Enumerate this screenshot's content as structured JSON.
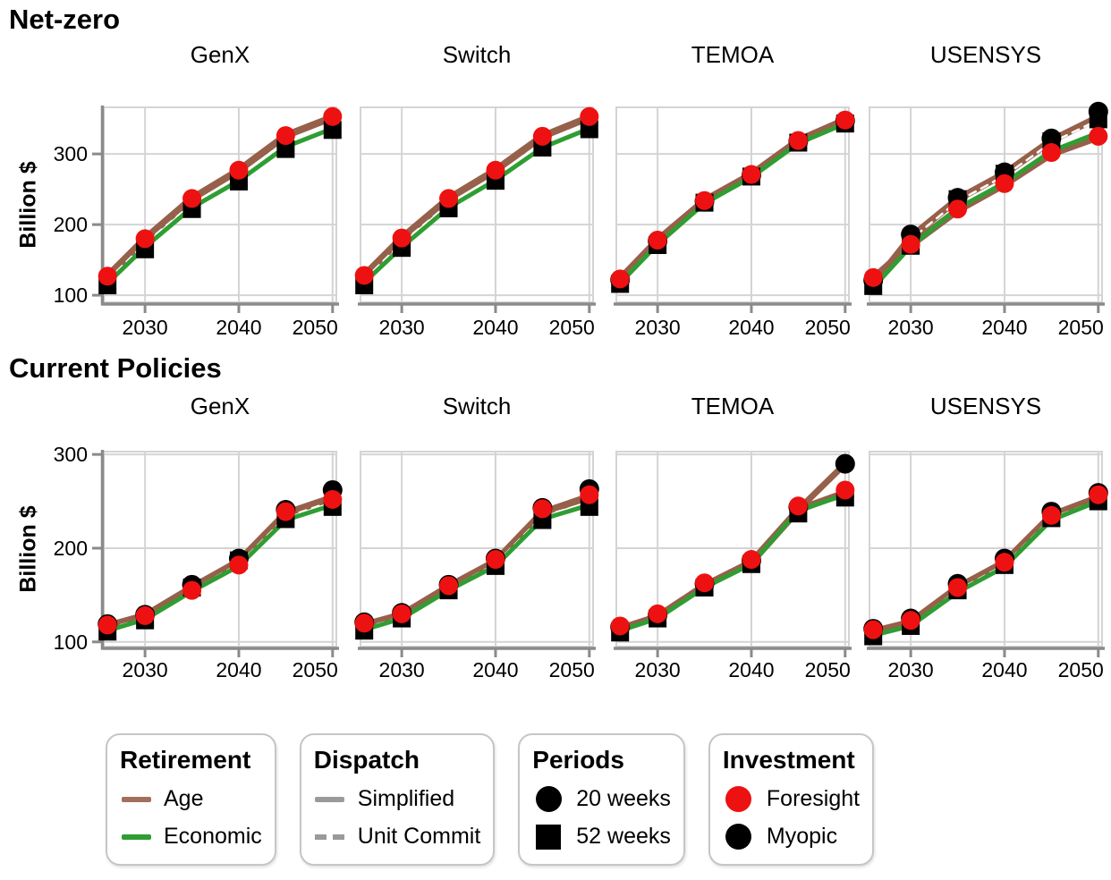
{
  "colors": {
    "age_brown": "#96604a",
    "economic_green": "#2f9e32",
    "foresight_red": "#ee1111",
    "myopic_black": "#000000",
    "dispatch_gray": "#9a9a9a",
    "grid": "#d4d4d4",
    "axis": "#8a8a8a",
    "background": "#ffffff"
  },
  "chart_data": {
    "type": "line",
    "x": [
      2026,
      2030,
      2035,
      2040,
      2045,
      2050
    ],
    "x_ticks": [
      2030,
      2040,
      2050
    ],
    "x_domain": [
      2025.6,
      2050.4
    ],
    "rows": [
      {
        "title": "Net-zero",
        "ylabel": "Billion $",
        "y_ticks": [
          100,
          200,
          300
        ],
        "y_domain": [
          90,
          366
        ],
        "panels": [
          {
            "title": "GenX",
            "lines": [
              {
                "name": "age-simplified",
                "color": "#96604a",
                "width": 8,
                "dash": null,
                "values": [
                  127,
                  180,
                  237,
                  277,
                  326,
                  352
                ]
              },
              {
                "name": "unit-commit",
                "color": "#ffffff",
                "width": 2.5,
                "dash": "8 7",
                "values": [
                  121,
                  173,
                  229,
                  268,
                  317,
                  342
                ]
              },
              {
                "name": "economic",
                "color": "#2f9e32",
                "width": 5,
                "dash": null,
                "values": [
                  117,
                  168,
                  224,
                  262,
                  310,
                  336
                ]
              }
            ],
            "markers": [
              {
                "name": "52-weeks-myopic",
                "shape": "square",
                "color": "#000000",
                "values": [
                  114,
                  165,
                  222,
                  261,
                  307,
                  334
                ]
              },
              {
                "name": "20-weeks-foresight",
                "shape": "circle",
                "color": "#ee1111",
                "values": [
                  127,
                  180,
                  237,
                  277,
                  326,
                  353
                ]
              }
            ]
          },
          {
            "title": "Switch",
            "lines": [
              {
                "name": "age-simplified",
                "color": "#96604a",
                "width": 8,
                "dash": null,
                "values": [
                  128,
                  181,
                  237,
                  277,
                  325,
                  352
                ]
              },
              {
                "name": "unit-commit",
                "color": "#ffffff",
                "width": 2.5,
                "dash": "8 7",
                "values": [
                  122,
                  174,
                  229,
                  268,
                  315,
                  342
                ]
              },
              {
                "name": "economic",
                "color": "#2f9e32",
                "width": 5,
                "dash": null,
                "values": [
                  118,
                  168,
                  224,
                  263,
                  309,
                  336
                ]
              }
            ],
            "markers": [
              {
                "name": "52-weeks-myopic",
                "shape": "square",
                "color": "#000000",
                "values": [
                  114,
                  167,
                  223,
                  262,
                  309,
                  335
                ]
              },
              {
                "name": "20-weeks-foresight",
                "shape": "circle",
                "color": "#ee1111",
                "values": [
                  128,
                  181,
                  237,
                  277,
                  325,
                  353
                ]
              }
            ]
          },
          {
            "title": "TEMOA",
            "lines": [
              {
                "name": "age-simplified",
                "color": "#96604a",
                "width": 8,
                "dash": null,
                "values": [
                  123,
                  178,
                  234,
                  271,
                  319,
                  348
                ]
              },
              {
                "name": "unit-commit",
                "color": "#ffffff",
                "width": 2.5,
                "dash": "8 7",
                "values": [
                  119,
                  174,
                  231,
                  268,
                  316,
                  344
                ]
              },
              {
                "name": "economic",
                "color": "#2f9e32",
                "width": 5,
                "dash": null,
                "values": [
                  117,
                  172,
                  230,
                  267,
                  315,
                  343
                ]
              }
            ],
            "markers": [
              {
                "name": "52-weeks-myopic",
                "shape": "square",
                "color": "#000000",
                "values": [
                  116,
                  171,
                  231,
                  268,
                  316,
                  343
                ]
              },
              {
                "name": "20-weeks-myopic",
                "shape": "circle",
                "color": "#000000",
                "values": [
                  122,
                  177,
                  233,
                  270,
                  318,
                  347
                ]
              },
              {
                "name": "20-weeks-foresight",
                "shape": "circle",
                "color": "#ee1111",
                "values": [
                  123,
                  178,
                  234,
                  271,
                  319,
                  348
                ]
              }
            ]
          },
          {
            "title": "USENSYS",
            "lines": [
              {
                "name": "age-myopic",
                "color": "#96604a",
                "width": 8,
                "dash": null,
                "values": [
                  115,
                  182,
                  236,
                  272,
                  319,
                  352
                ]
              },
              {
                "name": "unit-commit",
                "color": "#ffffff",
                "width": 2.5,
                "dash": "8 7",
                "values": [
                  112,
                  179,
                  233,
                  269,
                  316,
                  348
                ]
              },
              {
                "name": "age-foresight",
                "color": "#96604a",
                "width": 8,
                "dash": null,
                "values": [
                  124,
                  171,
                  220,
                  257,
                  300,
                  324
                ]
              },
              {
                "name": "economic",
                "color": "#2f9e32",
                "width": 5,
                "dash": null,
                "values": [
                  111,
                  169,
                  223,
                  259,
                  304,
                  330
                ]
              }
            ],
            "markers": [
              {
                "name": "52-weeks-myopic",
                "shape": "square",
                "color": "#000000",
                "values": [
                  113,
                  170,
                  236,
                  272,
                  318,
                  349
                ]
              },
              {
                "name": "20-weeks-myopic",
                "shape": "circle",
                "color": "#000000",
                "values": [
                  121,
                  186,
                  238,
                  274,
                  322,
                  360
                ]
              },
              {
                "name": "20-weeks-foresight",
                "shape": "circle",
                "color": "#ee1111",
                "values": [
                  125,
                  172,
                  222,
                  258,
                  302,
                  325
                ]
              }
            ]
          }
        ]
      },
      {
        "title": "Current Policies",
        "ylabel": "Billion $",
        "y_ticks": [
          100,
          200,
          300
        ],
        "y_domain": [
          95,
          303
        ],
        "panels": [
          {
            "title": "GenX",
            "lines": [
              {
                "name": "age-simplified",
                "color": "#96604a",
                "width": 8,
                "dash": null,
                "values": [
                  117,
                  128,
                  158,
                  186,
                  237,
                  254
                ]
              },
              {
                "name": "unit-commit",
                "color": "#ffffff",
                "width": 2.5,
                "dash": "8 7",
                "values": [
                  114,
                  125,
                  155,
                  183,
                  233,
                  250
                ]
              },
              {
                "name": "economic",
                "color": "#2f9e32",
                "width": 5,
                "dash": null,
                "values": [
                  112,
                  124,
                  154,
                  181,
                  230,
                  246
                ]
              }
            ],
            "markers": [
              {
                "name": "52-weeks-myopic",
                "shape": "square",
                "color": "#000000",
                "values": [
                  111,
                  123,
                  158,
                  187,
                  231,
                  244
                ]
              },
              {
                "name": "20-weeks-myopic",
                "shape": "circle",
                "color": "#000000",
                "values": [
                  119,
                  129,
                  161,
                  189,
                  241,
                  262
                ]
              },
              {
                "name": "20-weeks-foresight",
                "shape": "circle",
                "color": "#ee1111",
                "values": [
                  118,
                  128,
                  155,
                  182,
                  239,
                  252
                ]
              }
            ]
          },
          {
            "title": "Switch",
            "lines": [
              {
                "name": "age-simplified",
                "color": "#96604a",
                "width": 8,
                "dash": null,
                "values": [
                  118,
                  129,
                  159,
                  186,
                  238,
                  255
                ]
              },
              {
                "name": "unit-commit",
                "color": "#ffffff",
                "width": 2.5,
                "dash": "8 7",
                "values": [
                  115,
                  126,
                  156,
                  183,
                  234,
                  249
                ]
              },
              {
                "name": "economic",
                "color": "#2f9e32",
                "width": 5,
                "dash": null,
                "values": [
                  113,
                  125,
                  155,
                  181,
                  231,
                  246
                ]
              }
            ],
            "markers": [
              {
                "name": "52-weeks-myopic",
                "shape": "square",
                "color": "#000000",
                "values": [
                  112,
                  125,
                  155,
                  181,
                  230,
                  244
                ]
              },
              {
                "name": "20-weeks-myopic",
                "shape": "circle",
                "color": "#000000",
                "values": [
                  121,
                  131,
                  161,
                  189,
                  243,
                  263
                ]
              },
              {
                "name": "20-weeks-foresight",
                "shape": "circle",
                "color": "#ee1111",
                "values": [
                  120,
                  130,
                  160,
                  188,
                  242,
                  257
                ]
              }
            ]
          },
          {
            "title": "TEMOA",
            "lines": [
              {
                "name": "age-simplified",
                "color": "#96604a",
                "width": 8,
                "dash": null,
                "values": [
                  114,
                  127,
                  160,
                  185,
                  241,
                  259
                ]
              },
              {
                "name": "age-myopic-branch",
                "color": "#96604a",
                "width": 7,
                "dash": null,
                "values": [
                  null,
                  null,
                  null,
                  null,
                  241,
                  290
                ]
              },
              {
                "name": "economic",
                "color": "#2f9e32",
                "width": 5,
                "dash": null,
                "values": [
                  112,
                  125,
                  158,
                  183,
                  240,
                  257
                ]
              }
            ],
            "markers": [
              {
                "name": "52-weeks-myopic",
                "shape": "square",
                "color": "#000000",
                "values": [
                  110,
                  125,
                  158,
                  183,
                  237,
                  254
                ]
              },
              {
                "name": "20-weeks-myopic",
                "shape": "circle",
                "color": "#000000",
                "values": [
                  116,
                  129,
                  162,
                  187,
                  244,
                  290
                ]
              },
              {
                "name": "20-weeks-foresight",
                "shape": "circle",
                "color": "#ee1111",
                "values": [
                  117,
                  130,
                  163,
                  188,
                  245,
                  262
                ]
              }
            ]
          },
          {
            "title": "USENSYS",
            "lines": [
              {
                "name": "age-simplified",
                "color": "#96604a",
                "width": 8,
                "dash": null,
                "values": [
                  111,
                  121,
                  158,
                  185,
                  235,
                  254
                ]
              },
              {
                "name": "unit-commit",
                "color": "#ffffff",
                "width": 2.5,
                "dash": "8 7",
                "values": [
                  108,
                  118,
                  155,
                  182,
                  232,
                  251
                ]
              },
              {
                "name": "economic",
                "color": "#2f9e32",
                "width": 5,
                "dash": null,
                "values": [
                  107,
                  117,
                  153,
                  180,
                  230,
                  250
                ]
              }
            ],
            "markers": [
              {
                "name": "52-weeks-myopic",
                "shape": "square",
                "color": "#000000",
                "values": [
                  106,
                  117,
                  155,
                  182,
                  232,
                  250
                ]
              },
              {
                "name": "20-weeks-myopic",
                "shape": "circle",
                "color": "#000000",
                "values": [
                  114,
                  125,
                  162,
                  189,
                  239,
                  259
                ]
              },
              {
                "name": "20-weeks-foresight",
                "shape": "circle",
                "color": "#ee1111",
                "values": [
                  113,
                  123,
                  158,
                  185,
                  235,
                  257
                ]
              }
            ]
          }
        ]
      }
    ]
  },
  "legend": {
    "boxes": [
      {
        "title": "Retirement",
        "items": [
          {
            "swatch": "line",
            "color": "#a1705c",
            "label": "Age"
          },
          {
            "swatch": "line",
            "color": "#2f9e32",
            "label": "Economic"
          }
        ]
      },
      {
        "title": "Dispatch",
        "items": [
          {
            "swatch": "line",
            "color": "#9a9a9a",
            "label": "Simplified"
          },
          {
            "swatch": "dashed-line",
            "color": "#9a9a9a",
            "label": "Unit Commit"
          }
        ]
      },
      {
        "title": "Periods",
        "items": [
          {
            "swatch": "circle",
            "color": "#000000",
            "label": "20 weeks"
          },
          {
            "swatch": "square",
            "color": "#000000",
            "label": "52 weeks"
          }
        ]
      },
      {
        "title": "Investment",
        "items": [
          {
            "swatch": "circle",
            "color": "#ee1111",
            "label": "Foresight"
          },
          {
            "swatch": "circle",
            "color": "#000000",
            "label": "Myopic"
          }
        ]
      }
    ]
  }
}
